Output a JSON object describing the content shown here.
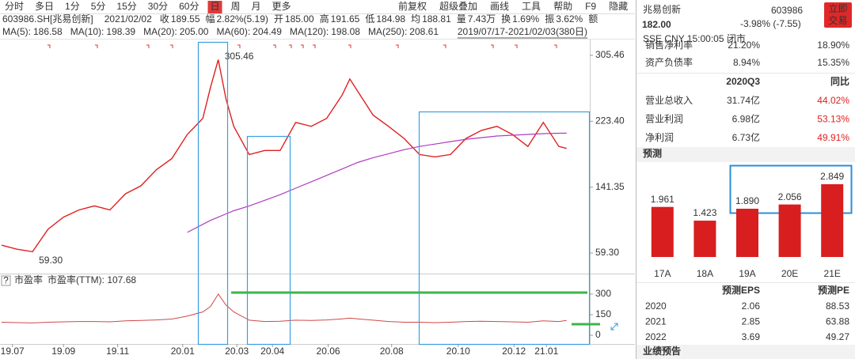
{
  "toolbar": {
    "left": [
      "分时",
      "多日",
      "1分",
      "5分",
      "15分",
      "30分",
      "60分",
      "日",
      "周",
      "月",
      "更多"
    ],
    "active": 7,
    "right": [
      "前复权",
      "超级叠加",
      "画线",
      "工具",
      "帮助",
      "F9",
      "隐藏"
    ]
  },
  "quote": {
    "symbol": "603986.SH[兆易创新]",
    "date": "2021/02/02",
    "fields": [
      {
        "label": "收",
        "value": "189.55",
        "color": "#e02020"
      },
      {
        "label": "幅",
        "value": "2.82%(5.19)",
        "color": "#e02020"
      },
      {
        "label": "开",
        "value": "185.00",
        "color": "#e02020"
      },
      {
        "label": "高",
        "value": "191.65",
        "color": "#e02020"
      },
      {
        "label": "低",
        "value": "184.98",
        "color": "#e02020"
      },
      {
        "label": "均",
        "value": "188.81",
        "color": "#e02020"
      },
      {
        "label": "量",
        "value": "7.43万",
        "color": "#333333"
      },
      {
        "label": "换",
        "value": "1.69%",
        "color": "#333333"
      },
      {
        "label": "振",
        "value": "3.62%",
        "color": "#333333"
      }
    ],
    "trailing": "额"
  },
  "ma_legend": [
    {
      "name": "MA(5):",
      "value": "186.58",
      "color": "#333333"
    },
    {
      "name": "MA(10):",
      "value": "198.39",
      "color": "#2050d0"
    },
    {
      "name": "MA(20):",
      "value": "205.00",
      "color": "#1a2f8a"
    },
    {
      "name": "MA(60):",
      "value": "204.49",
      "color": "#2aa8c0"
    },
    {
      "name": "MA(120):",
      "value": "198.08",
      "color": "#2e9a2e"
    },
    {
      "name": "MA(250):",
      "value": "208.61",
      "color": "#b03cc0"
    }
  ],
  "range": "2019/07/17-2021/02/03(380日)",
  "price_chart": {
    "type": "line",
    "x": [
      0,
      10,
      20,
      30,
      40,
      50,
      60,
      70,
      80,
      90,
      100,
      110,
      120,
      130,
      135,
      140,
      145,
      150,
      160,
      170,
      180,
      190,
      200,
      210,
      220,
      225,
      230,
      240,
      250,
      260,
      270,
      280,
      290,
      300,
      310,
      320,
      330,
      340,
      350,
      360,
      365
    ],
    "xlim": [
      0,
      380
    ],
    "xticks": [
      {
        "value": 7,
        "label": "19.07"
      },
      {
        "value": 40,
        "label": "19.09"
      },
      {
        "value": 75,
        "label": "19.11"
      },
      {
        "value": 117,
        "label": "20.01"
      },
      {
        "value": 152,
        "label": "20.03"
      },
      {
        "value": 175,
        "label": "20.04"
      },
      {
        "value": 211,
        "label": "20.06"
      },
      {
        "value": 252,
        "label": "20.08"
      },
      {
        "value": 295,
        "label": "20.10"
      },
      {
        "value": 331,
        "label": "20.12"
      },
      {
        "value": 352,
        "label": "21.01"
      }
    ],
    "ylim": [
      34.68,
      325.15
    ],
    "yticks": [
      {
        "value": 59.3,
        "label": "59.30"
      },
      141.35,
      {
        "value": 223.4,
        "label": "223.40"
      },
      305.46
    ],
    "series": [
      {
        "name": "收盘",
        "color": "#e02020",
        "values": [
          69,
          64,
          61,
          89,
          104,
          113,
          118,
          113,
          133,
          143,
          163,
          177,
          207,
          227,
          266,
          300,
          251,
          217,
          182,
          187,
          187,
          222,
          217,
          227,
          256,
          276,
          261,
          231,
          217,
          202,
          182,
          179,
          182,
          202,
          212,
          217,
          207,
          192,
          222,
          192,
          189.55
        ]
      },
      {
        "name": "MA(250)",
        "color": "#b03cc0",
        "values": [
          null,
          null,
          null,
          null,
          null,
          null,
          null,
          null,
          null,
          null,
          null,
          null,
          85,
          95,
          100,
          104,
          108,
          112,
          118,
          125,
          132,
          140,
          148,
          156,
          164,
          168,
          172,
          178,
          183,
          188,
          192,
          195,
          198,
          201,
          203,
          205,
          206,
          207,
          208,
          208.5,
          208.61
        ]
      }
    ],
    "annotations": [
      {
        "label": "305.46",
        "x": 140,
        "value": 305.46,
        "color": "#d02020"
      },
      {
        "label": "59.30",
        "x": 20,
        "value": 59.3,
        "color": "#1e6b2e"
      }
    ]
  },
  "pe_chart": {
    "type": "line",
    "badge": "?",
    "name": "市盈率",
    "legend": "市盈率(TTM): 107.68",
    "color": "#d04848",
    "ylim": [
      -46,
      357
    ],
    "yticks": [
      0,
      150,
      300
    ],
    "values": [
      95,
      92,
      90,
      95,
      98,
      100,
      100,
      98,
      105,
      108,
      112,
      118,
      140,
      170,
      210,
      300,
      220,
      170,
      110,
      100,
      102,
      110,
      108,
      112,
      120,
      125,
      120,
      110,
      100,
      95,
      95,
      92,
      95,
      100,
      102,
      100,
      98,
      95,
      105,
      100,
      107.68
    ]
  },
  "stock": {
    "name": "兆易创新",
    "code": "603986",
    "button": [
      "立即",
      "交易"
    ],
    "price": "182.00",
    "change": "-3.98% (-7.55)",
    "status": "SSE CNY 15:00:05 闭市"
  },
  "finance": {
    "rows": [
      [
        "销售净利率",
        "21.20%",
        "18.90%"
      ],
      [
        "资产负债率",
        "8.94%",
        "15.35%"
      ]
    ],
    "header": [
      "2020Q3",
      "同比"
    ],
    "rows2": [
      [
        "营业总收入",
        "31.74亿",
        "44.02%"
      ],
      [
        "营业利润",
        "6.98亿",
        "53.13%"
      ],
      [
        "净利润",
        "6.73亿",
        "49.91%"
      ]
    ]
  },
  "forecast": {
    "title": "预测",
    "chart": {
      "type": "bar",
      "categories": [
        "17A",
        "18A",
        "19A",
        "20E",
        "21E"
      ],
      "values": [
        1.961,
        1.423,
        1.89,
        2.056,
        2.849
      ],
      "value_labels": [
        "1.961",
        "1.423",
        "1.890",
        "2.056",
        "2.849"
      ],
      "color": "#d81e1e",
      "ylim": [
        0,
        3.7
      ]
    },
    "table": {
      "header": [
        "预测EPS",
        "预测PE"
      ],
      "rows": [
        [
          "2020",
          "2.06",
          "88.53"
        ],
        [
          "2021",
          "2.85",
          "63.88"
        ],
        [
          "2022",
          "3.69",
          "49.27"
        ]
      ]
    }
  },
  "footer": "业绩预告"
}
